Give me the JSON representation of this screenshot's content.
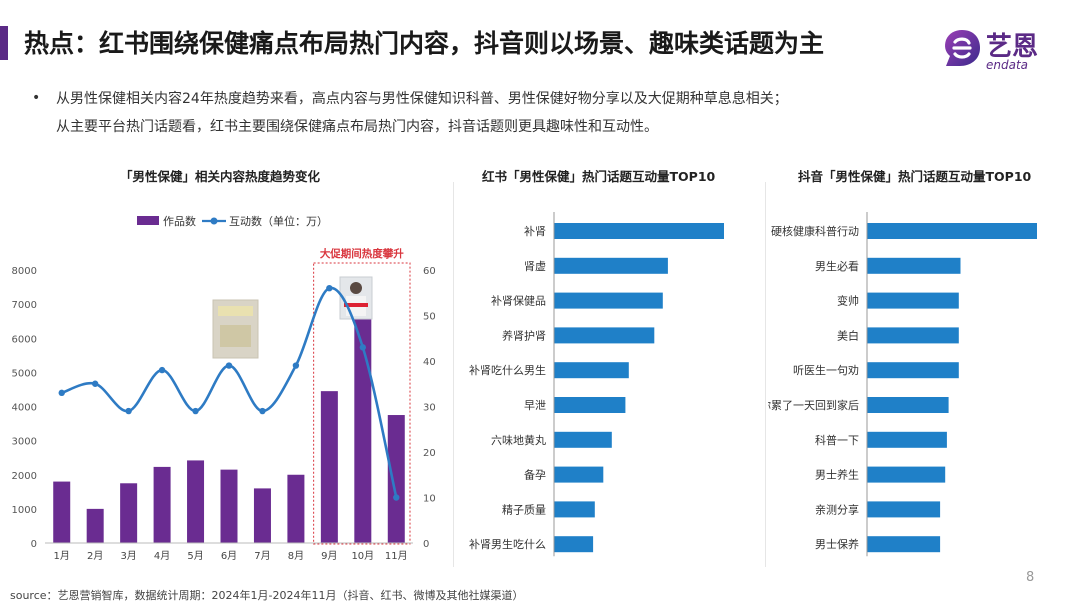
{
  "header": {
    "title": "热点：红书围绕保健痛点布局热门内容，抖音则以场景、趣味类话题为主",
    "logo_text": "艺恩",
    "logo_sub": "endata",
    "accent_color": "#5b2a86"
  },
  "summary": {
    "bullet": "•",
    "line1": "从男性保健相关内容24年热度趋势来看，高点内容与男性保健知识科普、男性保健好物分享以及大促期种草息息相关；",
    "line2": "从主要平台热门话题看，红书主要围绕保健痛点布局热门内容，抖音话题则更具趣味性和互动性。"
  },
  "chart_data": [
    {
      "type": "bar",
      "title": "「男性保健」相关内容热度趋势变化",
      "categories": [
        "1月",
        "2月",
        "3月",
        "4月",
        "5月",
        "6月",
        "7月",
        "8月",
        "9月",
        "10月",
        "11月"
      ],
      "series": [
        {
          "name": "作品数",
          "type": "bar",
          "axis": "left",
          "color": "#6a2c91",
          "values": [
            1800,
            1000,
            1750,
            2230,
            2420,
            2150,
            1600,
            2000,
            4450,
            6700,
            3750
          ]
        },
        {
          "name": "互动数（单位：万）",
          "type": "line",
          "axis": "right",
          "color": "#2e7bc4",
          "values": [
            33,
            35,
            29,
            38,
            29,
            39,
            29,
            39,
            56,
            43,
            10
          ]
        }
      ],
      "yleft_ticks": [
        0,
        1000,
        2000,
        3000,
        4000,
        5000,
        6000,
        7000,
        8000
      ],
      "yright_ticks": [
        0,
        10,
        20,
        30,
        40,
        50,
        60
      ],
      "ylim_left": [
        0,
        8000
      ],
      "ylim_right": [
        0,
        60
      ],
      "legend_position": "top-center",
      "annotation": "大促期间热度攀升",
      "highlight_categories": [
        "9月",
        "10月",
        "11月"
      ]
    },
    {
      "type": "bar",
      "orientation": "horizontal",
      "title": "红书「男性保健」热门话题互动量TOP10",
      "categories": [
        "补肾",
        "肾虚",
        "补肾保健品",
        "养肾护肾",
        "补肾吃什么男生",
        "早泄",
        "六味地黄丸",
        "备孕",
        "精子质量",
        "补肾男生吃什么"
      ],
      "values": [
        100,
        67,
        64,
        59,
        44,
        42,
        34,
        29,
        24,
        23
      ],
      "color": "#1f80c8"
    },
    {
      "type": "bar",
      "orientation": "horizontal",
      "title": "抖音「男性保健」热门话题互动量TOP10",
      "categories": [
        "硬核健康科普行动",
        "男生必看",
        "变帅",
        "美白",
        "听医生一句劝",
        "当你累了一天回到家后",
        "科普一下",
        "男士养生",
        "亲测分享",
        "男士保养"
      ],
      "values": [
        100,
        55,
        54,
        54,
        54,
        48,
        47,
        46,
        43,
        43
      ],
      "color": "#1f80c8"
    }
  ],
  "footer": {
    "source": "source：艺恩营销智库，数据统计周期：2024年1月-2024年11月（抖音、红书、微博及其他社媒渠道）",
    "page": "8"
  }
}
